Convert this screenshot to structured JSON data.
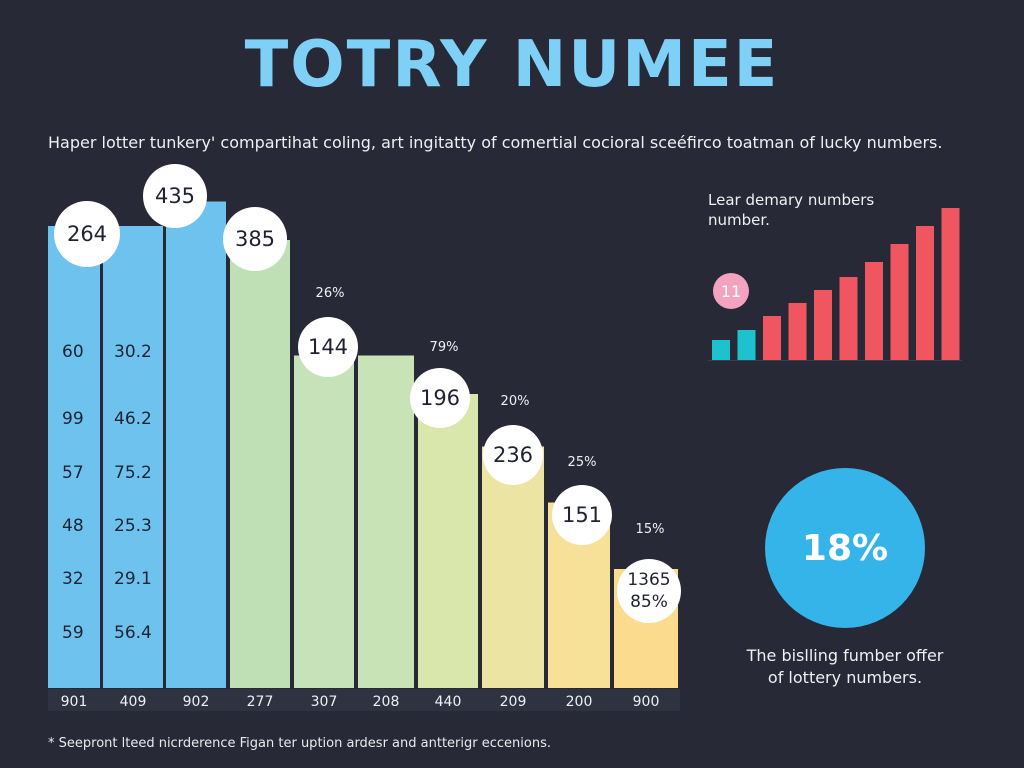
{
  "title": "TOTRY NUMEE",
  "subtitle": "Haper lotter tunkery' compartihat coling, art ingitatty of comertial cocioral sceéfirco toatman of lucky numbers.",
  "footnote": "* Seepront lteed nicrderence Figan ter uption ardesr and antterigr eccenions.",
  "chart_data": [
    {
      "type": "bar",
      "title": "",
      "categories": [
        "901",
        "409",
        "902",
        "277",
        "307",
        "208",
        "440",
        "209",
        "200",
        "900"
      ],
      "values": [
        264,
        264,
        278,
        256,
        190,
        190,
        168,
        138,
        106,
        68
      ],
      "bubbles": [
        "264",
        "435",
        "385",
        "144",
        "196",
        "236",
        "151",
        "1365\n85%"
      ],
      "percent_labels": [
        "26%",
        "79%",
        "20%",
        "25%",
        "15%"
      ],
      "left_column_a": [
        "60",
        "99",
        "57",
        "48",
        "32",
        "59"
      ],
      "left_column_b": [
        "30.2",
        "46.2",
        "75.2",
        "25.3",
        "29.1",
        "56.4"
      ],
      "colors": [
        "#6ec3ee",
        "#6ec3ee",
        "#6ec3ee",
        "#bfe0b4",
        "#c5e2b8",
        "#c8e3b6",
        "#d9e6ac",
        "#ece4a2",
        "#f7e097",
        "#fbdc8e"
      ]
    },
    {
      "type": "bar",
      "title": "Lear demary numbers number.",
      "marker_label": "11",
      "values": [
        20,
        30,
        44,
        57,
        70,
        83,
        98,
        116,
        134,
        152
      ],
      "colors": [
        "#1ec2cf",
        "#1ec2cf",
        "#f0565f",
        "#f0565f",
        "#f0565f",
        "#f0565f",
        "#f0565f",
        "#f0565f",
        "#f0565f",
        "#f0565f"
      ]
    }
  ],
  "donut": {
    "value": "18%",
    "color": "#35b4ea"
  },
  "caption": "The bislling fumber offer of lottery numbers."
}
